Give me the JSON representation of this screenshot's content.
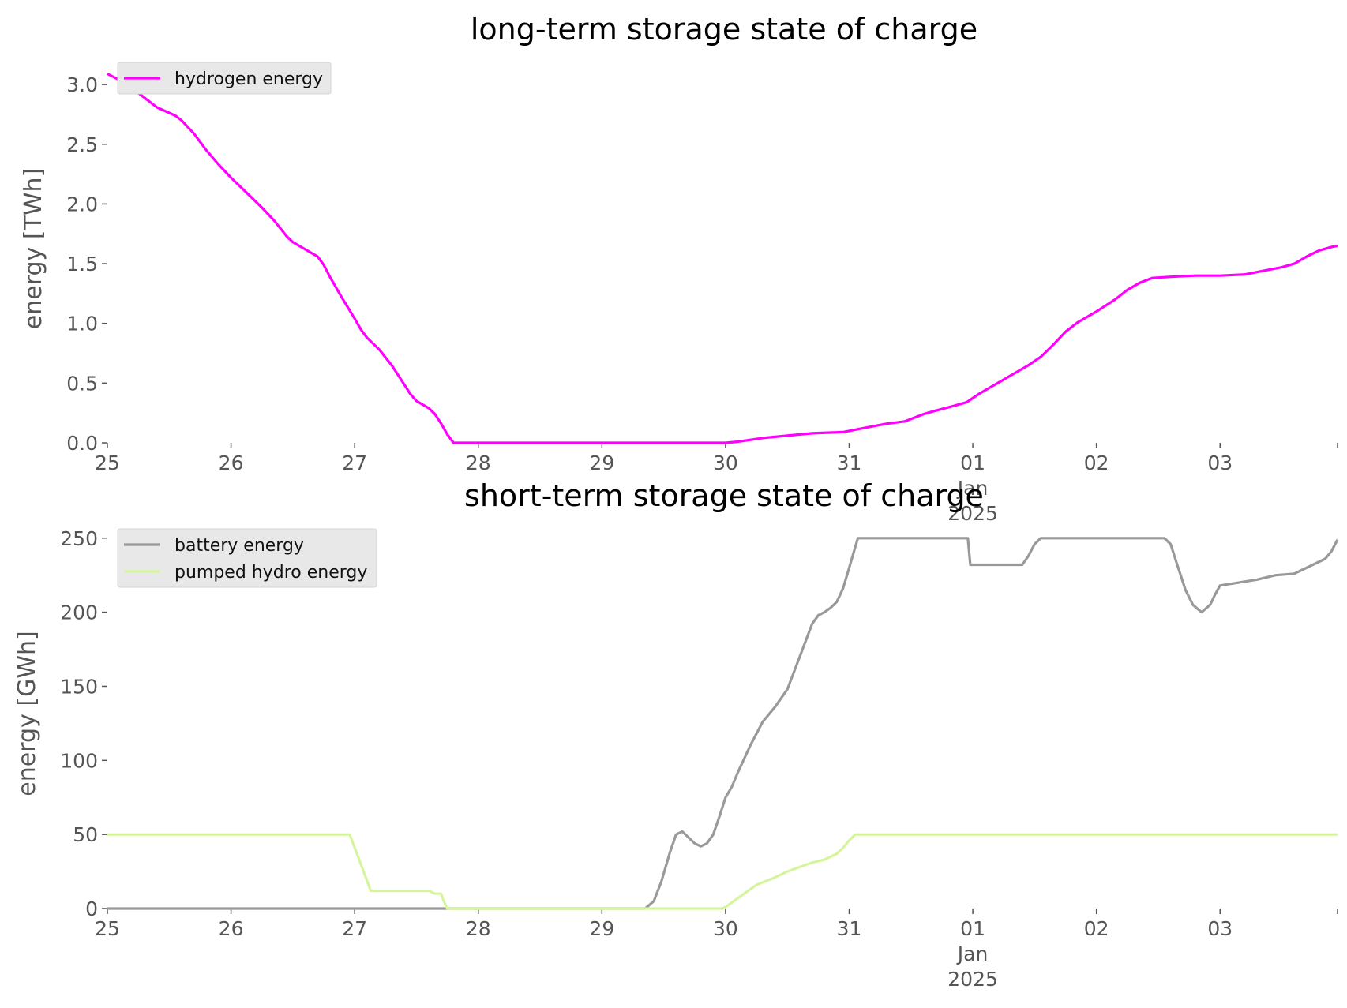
{
  "chart_data": [
    {
      "type": "line",
      "title": "long-term storage state of charge",
      "ylabel": "energy [TWh]",
      "xlabel": "",
      "x_unit": "days since 2024-12-25 00:00",
      "xlim": [
        0,
        9.95
      ],
      "ylim": [
        0,
        3.1
      ],
      "yticks": [
        0.0,
        0.5,
        1.0,
        1.5,
        2.0,
        2.5,
        3.0
      ],
      "ytick_labels": [
        "0.0",
        "0.5",
        "1.0",
        "1.5",
        "2.0",
        "2.5",
        "3.0"
      ],
      "xticks": [
        0,
        1,
        2,
        3,
        4,
        5,
        6,
        7,
        8,
        9
      ],
      "xtick_labels": [
        "25",
        "26",
        "27",
        "28",
        "29",
        "30",
        "31",
        "01\nJan\n2025",
        "02",
        "03"
      ],
      "grid": false,
      "legend_position": "top-left",
      "series": [
        {
          "name": "hydrogen energy",
          "color": "#ff00ff",
          "points": [
            [
              0,
              3.09
            ],
            [
              0.15,
              3.01
            ],
            [
              0.25,
              2.93
            ],
            [
              0.4,
              2.81
            ],
            [
              0.55,
              2.74
            ],
            [
              0.6,
              2.7
            ],
            [
              0.7,
              2.59
            ],
            [
              0.8,
              2.45
            ],
            [
              0.9,
              2.33
            ],
            [
              1.0,
              2.22
            ],
            [
              1.15,
              2.07
            ],
            [
              1.25,
              1.97
            ],
            [
              1.35,
              1.86
            ],
            [
              1.45,
              1.73
            ],
            [
              1.5,
              1.68
            ],
            [
              1.6,
              1.62
            ],
            [
              1.7,
              1.56
            ],
            [
              1.75,
              1.49
            ],
            [
              1.8,
              1.39
            ],
            [
              1.9,
              1.21
            ],
            [
              2.0,
              1.04
            ],
            [
              2.05,
              0.95
            ],
            [
              2.1,
              0.88
            ],
            [
              2.2,
              0.78
            ],
            [
              2.3,
              0.65
            ],
            [
              2.4,
              0.49
            ],
            [
              2.45,
              0.41
            ],
            [
              2.5,
              0.35
            ],
            [
              2.6,
              0.29
            ],
            [
              2.65,
              0.24
            ],
            [
              2.7,
              0.16
            ],
            [
              2.75,
              0.07
            ],
            [
              2.8,
              0.0
            ],
            [
              5.0,
              0.0
            ],
            [
              5.1,
              0.01
            ],
            [
              5.3,
              0.04
            ],
            [
              5.5,
              0.06
            ],
            [
              5.7,
              0.08
            ],
            [
              5.95,
              0.09
            ],
            [
              6.1,
              0.12
            ],
            [
              6.3,
              0.16
            ],
            [
              6.45,
              0.18
            ],
            [
              6.6,
              0.24
            ],
            [
              6.7,
              0.27
            ],
            [
              6.85,
              0.31
            ],
            [
              6.95,
              0.34
            ],
            [
              7.05,
              0.41
            ],
            [
              7.15,
              0.47
            ],
            [
              7.3,
              0.56
            ],
            [
              7.45,
              0.65
            ],
            [
              7.55,
              0.72
            ],
            [
              7.65,
              0.82
            ],
            [
              7.75,
              0.93
            ],
            [
              7.85,
              1.01
            ],
            [
              8.0,
              1.1
            ],
            [
              8.15,
              1.2
            ],
            [
              8.25,
              1.28
            ],
            [
              8.35,
              1.34
            ],
            [
              8.45,
              1.38
            ],
            [
              8.6,
              1.39
            ],
            [
              8.8,
              1.4
            ],
            [
              9.0,
              1.4
            ],
            [
              9.2,
              1.41
            ],
            [
              9.35,
              1.44
            ],
            [
              9.5,
              1.47
            ],
            [
              9.6,
              1.5
            ],
            [
              9.7,
              1.56
            ],
            [
              9.8,
              1.61
            ],
            [
              9.9,
              1.64
            ],
            [
              9.95,
              1.65
            ]
          ]
        }
      ]
    },
    {
      "type": "line",
      "title": "short-term storage state of charge",
      "ylabel": "energy [GWh]",
      "xlabel": "",
      "x_unit": "days since 2024-12-25 00:00",
      "xlim": [
        0,
        9.95
      ],
      "ylim": [
        0,
        252
      ],
      "yticks": [
        0,
        50,
        100,
        150,
        200,
        250
      ],
      "ytick_labels": [
        "0",
        "50",
        "100",
        "150",
        "200",
        "250"
      ],
      "xticks": [
        0,
        1,
        2,
        3,
        4,
        5,
        6,
        7,
        8,
        9
      ],
      "xtick_labels": [
        "25",
        "26",
        "27",
        "28",
        "29",
        "30",
        "31",
        "01\nJan\n2025",
        "02",
        "03"
      ],
      "grid": false,
      "legend_position": "top-left",
      "series": [
        {
          "name": "battery energy",
          "color": "#999999",
          "points": [
            [
              0,
              0
            ],
            [
              4.35,
              0
            ],
            [
              4.42,
              5
            ],
            [
              4.48,
              18
            ],
            [
              4.55,
              38
            ],
            [
              4.6,
              50
            ],
            [
              4.65,
              52
            ],
            [
              4.7,
              48
            ],
            [
              4.75,
              44
            ],
            [
              4.8,
              42
            ],
            [
              4.85,
              44
            ],
            [
              4.9,
              50
            ],
            [
              4.95,
              62
            ],
            [
              5.0,
              75
            ],
            [
              5.05,
              82
            ],
            [
              5.1,
              92
            ],
            [
              5.2,
              110
            ],
            [
              5.3,
              126
            ],
            [
              5.4,
              136
            ],
            [
              5.5,
              148
            ],
            [
              5.6,
              170
            ],
            [
              5.7,
              192
            ],
            [
              5.75,
              198
            ],
            [
              5.8,
              200
            ],
            [
              5.85,
              203
            ],
            [
              5.9,
              207
            ],
            [
              5.95,
              216
            ],
            [
              6.0,
              230
            ],
            [
              6.07,
              250
            ],
            [
              6.96,
              250
            ],
            [
              6.98,
              232
            ],
            [
              7.4,
              232
            ],
            [
              7.45,
              238
            ],
            [
              7.5,
              246
            ],
            [
              7.55,
              250
            ],
            [
              8.55,
              250
            ],
            [
              8.6,
              246
            ],
            [
              8.65,
              233
            ],
            [
              8.72,
              215
            ],
            [
              8.78,
              205
            ],
            [
              8.85,
              200
            ],
            [
              8.92,
              205
            ],
            [
              8.96,
              212
            ],
            [
              9.0,
              218
            ],
            [
              9.15,
              220
            ],
            [
              9.3,
              222
            ],
            [
              9.45,
              225
            ],
            [
              9.6,
              226
            ],
            [
              9.65,
              228
            ],
            [
              9.75,
              232
            ],
            [
              9.85,
              236
            ],
            [
              9.9,
              241
            ],
            [
              9.95,
              249
            ]
          ]
        },
        {
          "name": "pumped hydro energy",
          "color": "#d5f59c",
          "points": [
            [
              0,
              50
            ],
            [
              1.96,
              50
            ],
            [
              2.05,
              30
            ],
            [
              2.13,
              12
            ],
            [
              2.5,
              12
            ],
            [
              2.6,
              12
            ],
            [
              2.65,
              10
            ],
            [
              2.7,
              10
            ],
            [
              2.72,
              5
            ],
            [
              2.75,
              0
            ],
            [
              4.98,
              0
            ],
            [
              5.05,
              4
            ],
            [
              5.15,
              10
            ],
            [
              5.25,
              16
            ],
            [
              5.4,
              21
            ],
            [
              5.5,
              25
            ],
            [
              5.6,
              28
            ],
            [
              5.7,
              31
            ],
            [
              5.8,
              33
            ],
            [
              5.85,
              35
            ],
            [
              5.9,
              37
            ],
            [
              5.95,
              41
            ],
            [
              6.0,
              46
            ],
            [
              6.05,
              50
            ],
            [
              9.95,
              50
            ]
          ]
        }
      ]
    }
  ]
}
